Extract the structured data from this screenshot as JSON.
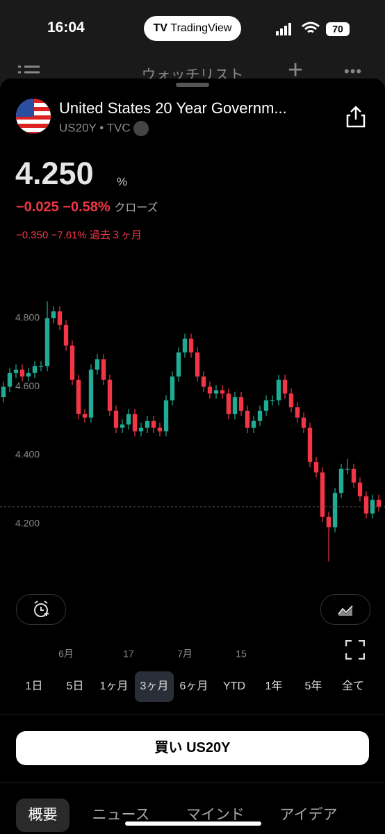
{
  "status_bar": {
    "time": "16:04",
    "app_badge": "TradingView",
    "battery": "70"
  },
  "nav": {
    "title": "ウォッチリスト"
  },
  "symbol": {
    "name": "United States 20 Year Governm...",
    "ticker": "US20Y",
    "exchange": "TVC"
  },
  "quote": {
    "price": "4.250",
    "unit": "%",
    "change": "−0.025",
    "change_percent": "−0.58%",
    "status": "クローズ",
    "period_change": "−0.350",
    "period_change_percent": "−7.61%",
    "period": "過去３ヶ月"
  },
  "chart_data": {
    "type": "candlestick",
    "categories": [
      null,
      null,
      null,
      null,
      null,
      null,
      null,
      null,
      null,
      null,
      "6月",
      null,
      null,
      null,
      null,
      null,
      null,
      null,
      null,
      null,
      "17",
      null,
      null,
      null,
      null,
      null,
      null,
      null,
      null,
      "7月",
      null,
      null,
      null,
      null,
      null,
      null,
      null,
      null,
      "15",
      null,
      null,
      null,
      null,
      null,
      null,
      null,
      null,
      null,
      null,
      null,
      null,
      null,
      null,
      null,
      null,
      null,
      null,
      null,
      null,
      null,
      null
    ],
    "open": [
      4.57,
      4.6,
      4.64,
      4.65,
      4.63,
      4.64,
      4.66,
      4.66,
      4.8,
      4.82,
      4.78,
      4.72,
      4.62,
      4.52,
      4.51,
      4.65,
      4.68,
      4.62,
      4.53,
      4.48,
      4.49,
      4.52,
      4.47,
      4.48,
      4.5,
      4.48,
      4.47,
      4.56,
      4.63,
      4.7,
      4.74,
      4.7,
      4.63,
      4.6,
      4.58,
      4.59,
      4.58,
      4.52,
      4.57,
      4.53,
      4.48,
      4.5,
      4.53,
      4.56,
      4.56,
      4.62,
      4.58,
      4.54,
      4.51,
      4.48,
      4.38,
      4.35,
      4.22,
      4.19,
      4.29,
      4.36,
      4.36,
      4.32,
      4.28,
      4.23,
      4.27
    ],
    "high": [
      4.615,
      4.655,
      4.665,
      4.665,
      4.655,
      4.675,
      4.675,
      4.85,
      4.835,
      4.835,
      4.795,
      4.735,
      4.635,
      4.535,
      4.665,
      4.695,
      4.695,
      4.635,
      4.545,
      4.505,
      4.535,
      4.535,
      4.495,
      4.515,
      4.515,
      4.495,
      4.575,
      4.645,
      4.715,
      4.755,
      4.755,
      4.715,
      4.645,
      4.615,
      4.605,
      4.605,
      4.595,
      4.585,
      4.585,
      4.545,
      4.515,
      4.545,
      4.575,
      4.575,
      4.635,
      4.635,
      4.595,
      4.555,
      4.525,
      4.495,
      4.395,
      4.365,
      4.235,
      4.305,
      4.375,
      4.39,
      4.375,
      4.335,
      4.295,
      4.285,
      4.285
    ],
    "low": [
      4.555,
      4.585,
      4.625,
      4.615,
      4.615,
      4.625,
      4.645,
      4.645,
      4.785,
      4.765,
      4.705,
      4.605,
      4.505,
      4.495,
      4.495,
      4.635,
      4.605,
      4.515,
      4.465,
      4.465,
      4.475,
      4.455,
      4.455,
      4.465,
      4.465,
      4.455,
      4.455,
      4.545,
      4.615,
      4.685,
      4.685,
      4.615,
      4.585,
      4.565,
      4.565,
      4.565,
      4.505,
      4.505,
      4.515,
      4.465,
      4.465,
      4.485,
      4.515,
      4.545,
      4.545,
      4.565,
      4.525,
      4.495,
      4.465,
      4.365,
      4.335,
      4.205,
      4.09,
      4.175,
      4.275,
      4.345,
      4.305,
      4.265,
      4.215,
      4.215,
      4.235
    ],
    "close": [
      4.6,
      4.64,
      4.65,
      4.63,
      4.64,
      4.66,
      4.66,
      4.8,
      4.82,
      4.78,
      4.72,
      4.62,
      4.52,
      4.51,
      4.65,
      4.68,
      4.62,
      4.53,
      4.48,
      4.49,
      4.52,
      4.47,
      4.48,
      4.5,
      4.48,
      4.47,
      4.56,
      4.63,
      4.7,
      4.74,
      4.7,
      4.63,
      4.6,
      4.58,
      4.59,
      4.58,
      4.52,
      4.57,
      4.53,
      4.48,
      4.5,
      4.53,
      4.56,
      4.56,
      4.62,
      4.58,
      4.54,
      4.51,
      4.48,
      4.38,
      4.35,
      4.22,
      4.19,
      4.29,
      4.36,
      4.36,
      4.32,
      4.28,
      4.23,
      4.27,
      4.25
    ],
    "up_color": "#22ab94",
    "down_color": "#f23645",
    "ylim": [
      4.045,
      4.958
    ],
    "yticks": [
      {
        "value": 4.2,
        "label": "4.200"
      },
      {
        "value": 4.4,
        "label": "4.400"
      },
      {
        "value": 4.6,
        "label": "4.600"
      },
      {
        "value": 4.8,
        "label": "4.800"
      }
    ],
    "grid": false
  },
  "ranges": [
    "1日",
    "5日",
    "1ヶ月",
    "3ヶ月",
    "6ヶ月",
    "YTD",
    "1年",
    "5年",
    "全て"
  ],
  "selected_range": 3,
  "buy_button": "買い US20Y",
  "tabs": [
    "概要",
    "ニュース",
    "マインド",
    "アイデア"
  ]
}
